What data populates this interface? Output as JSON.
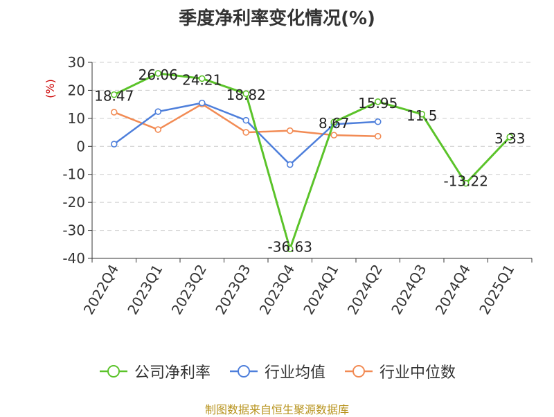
{
  "source_note": "制图数据来自恒生聚源数据库",
  "colors": {
    "company": "#5bc32a",
    "industry_avg": "#4e7fdb",
    "industry_median": "#f28b54",
    "grid": "#cccccc",
    "axis": "#333333",
    "unit": "#cc0000"
  },
  "chart_data": {
    "type": "line",
    "title": "季度净利率变化情况(%)",
    "ylabel": "(%)",
    "xlabel": "",
    "ylim": [
      -40,
      30
    ],
    "yticks": [
      30,
      20,
      10,
      0,
      -10,
      -20,
      -30,
      -40
    ],
    "grid": true,
    "legend_position": "bottom",
    "categories": [
      "2022Q4",
      "2023Q1",
      "2023Q2",
      "2023Q3",
      "2023Q4",
      "2024Q1",
      "2024Q2",
      "2024Q3",
      "2024Q4",
      "2025Q1"
    ],
    "series": [
      {
        "name": "公司净利率",
        "color": "#5bc32a",
        "labels": true,
        "values": [
          18.47,
          26.06,
          24.21,
          18.82,
          -36.63,
          8.67,
          15.95,
          11.5,
          -13.22,
          3.33
        ]
      },
      {
        "name": "行业均值",
        "color": "#4e7fdb",
        "labels": false,
        "values": [
          0.8,
          12.4,
          15.5,
          9.3,
          -6.5,
          7.9,
          8.8,
          null,
          null,
          null
        ]
      },
      {
        "name": "行业中位数",
        "color": "#f28b54",
        "labels": false,
        "values": [
          12.2,
          6.0,
          15.1,
          5.0,
          5.6,
          4.0,
          3.6,
          null,
          null,
          null
        ]
      }
    ]
  }
}
